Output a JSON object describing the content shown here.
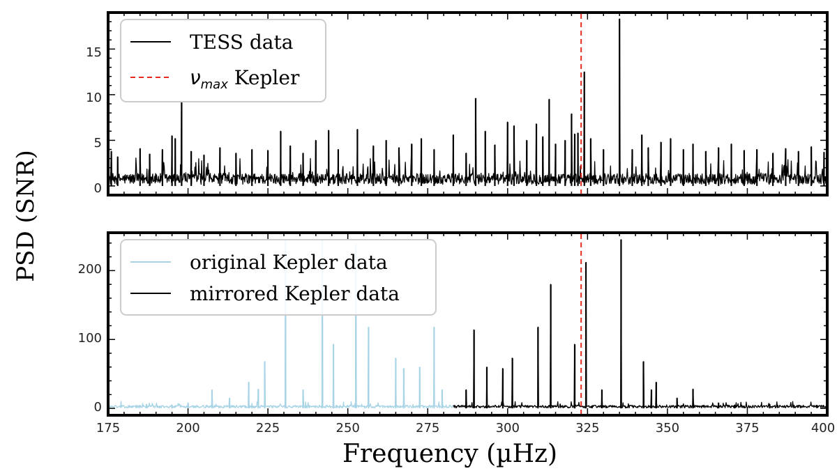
{
  "colors": {
    "tess": "#000000",
    "kepler_original": "#a9d4e6",
    "kepler_mirrored": "#000000",
    "numax": "#e8291c"
  },
  "chart_data": [
    {
      "type": "line",
      "panel": "top",
      "ylim": [
        -1,
        19
      ],
      "yticks": [
        0,
        5,
        10,
        15
      ],
      "xlim": [
        175,
        400
      ],
      "numax": 323,
      "legend": {
        "placement": "top-left",
        "entries": [
          "TESS data",
          "ν",
          "max",
          " Kepler"
        ]
      },
      "series": [
        {
          "name": "TESS data",
          "noise_level": 1.2,
          "peaks": [
            [
              176,
              3.8
            ],
            [
              178,
              3.2
            ],
            [
              185,
              4.1
            ],
            [
              188,
              3.5
            ],
            [
              192,
              4.0
            ],
            [
              195,
              5.5
            ],
            [
              196,
              5.2
            ],
            [
              198,
              9.2
            ],
            [
              201,
              3.8
            ],
            [
              205,
              3.4
            ],
            [
              210,
              4.2
            ],
            [
              215,
              3.6
            ],
            [
              220,
              4.0
            ],
            [
              225,
              3.9
            ],
            [
              229,
              6.0
            ],
            [
              232,
              4.4
            ],
            [
              236,
              3.6
            ],
            [
              240,
              5.0
            ],
            [
              244,
              6.1
            ],
            [
              247,
              4.0
            ],
            [
              253,
              6.2
            ],
            [
              258,
              4.4
            ],
            [
              262,
              5.0
            ],
            [
              266,
              4.2
            ],
            [
              270,
              4.6
            ],
            [
              273,
              5.2
            ],
            [
              277,
              4.0
            ],
            [
              283,
              5.6
            ],
            [
              287,
              3.6
            ],
            [
              290,
              9.6
            ],
            [
              293,
              6.0
            ],
            [
              296,
              4.5
            ],
            [
              300,
              7.0
            ],
            [
              302,
              6.6
            ],
            [
              306,
              5.0
            ],
            [
              309,
              6.8
            ],
            [
              311,
              5.4
            ],
            [
              313,
              9.5
            ],
            [
              315,
              4.6
            ],
            [
              318,
              5.0
            ],
            [
              320,
              7.9
            ],
            [
              321,
              5.7
            ],
            [
              322,
              5.8
            ],
            [
              324,
              12.5
            ],
            [
              326,
              5.2
            ],
            [
              330,
              4.0
            ],
            [
              335,
              18.3
            ],
            [
              339,
              4.0
            ],
            [
              342,
              5.6
            ],
            [
              344,
              4.2
            ],
            [
              348,
              4.8
            ],
            [
              351,
              5.2
            ],
            [
              355,
              4.0
            ],
            [
              358,
              4.6
            ],
            [
              362,
              3.8
            ],
            [
              366,
              4.2
            ],
            [
              370,
              4.6
            ],
            [
              374,
              3.9
            ],
            [
              378,
              4.0
            ],
            [
              383,
              3.6
            ],
            [
              387,
              4.1
            ],
            [
              391,
              3.8
            ],
            [
              395,
              4.3
            ],
            [
              399,
              3.7
            ]
          ]
        }
      ]
    },
    {
      "type": "line",
      "panel": "bottom",
      "xlabel": "Frequency (µHz)",
      "ylim": [
        -10,
        255
      ],
      "yticks": [
        0,
        100,
        200
      ],
      "xlim": [
        175,
        400
      ],
      "xticks": [
        175,
        200,
        225,
        250,
        275,
        300,
        325,
        350,
        375,
        400
      ],
      "numax": 323,
      "legend": {
        "placement": "top-left",
        "entries": [
          "original Kepler data",
          "mirrored Kepler data"
        ]
      },
      "series": [
        {
          "name": "original Kepler data",
          "range": [
            175,
            283
          ],
          "noise_level": 4,
          "peaks": [
            [
              187,
              6
            ],
            [
              195,
              5
            ],
            [
              200,
              8
            ],
            [
              207.5,
              27
            ],
            [
              213,
              15
            ],
            [
              219,
              38
            ],
            [
              222,
              28
            ],
            [
              224,
              68
            ],
            [
              230.5,
              245
            ],
            [
              236,
              27
            ],
            [
              242,
              245
            ],
            [
              245.5,
              93
            ],
            [
              252.5,
              240
            ],
            [
              256.5,
              118
            ],
            [
              265,
              73
            ],
            [
              267.5,
              58
            ],
            [
              272.5,
              60
            ],
            [
              277,
              118
            ],
            [
              279.5,
              27
            ]
          ]
        },
        {
          "name": "mirrored Kepler data",
          "range": [
            283,
            400
          ],
          "noise_level": 4,
          "peaks": [
            [
              287,
              27
            ],
            [
              289.5,
              114
            ],
            [
              293.5,
              60
            ],
            [
              298.5,
              58
            ],
            [
              301.5,
              73
            ],
            [
              309.5,
              118
            ],
            [
              313.5,
              180
            ],
            [
              321,
              93
            ],
            [
              324.5,
              212
            ],
            [
              329.5,
              27
            ],
            [
              335.5,
              245
            ],
            [
              342.5,
              68
            ],
            [
              345,
              27
            ],
            [
              346.5,
              38
            ],
            [
              353,
              15
            ],
            [
              358,
              28
            ],
            [
              366,
              8
            ],
            [
              371,
              5
            ],
            [
              382,
              6
            ]
          ]
        }
      ]
    }
  ],
  "ylabel": "PSD (SNR)",
  "tick_labels_top": [
    "0",
    "5",
    "10",
    "15"
  ],
  "tick_labels_bottom_y": [
    "0",
    "100",
    "200"
  ],
  "tick_labels_x": [
    "175",
    "200",
    "225",
    "250",
    "275",
    "300",
    "325",
    "350",
    "375",
    "400"
  ]
}
